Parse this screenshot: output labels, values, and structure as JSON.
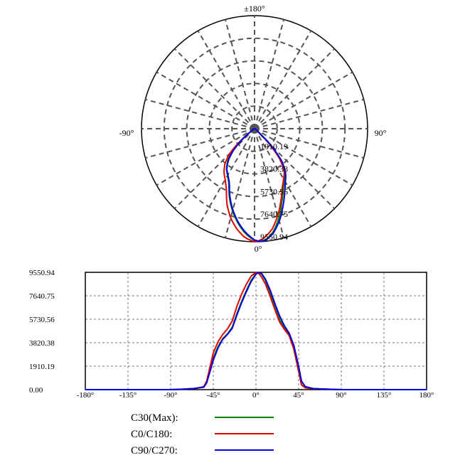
{
  "chart_data": [
    {
      "type": "polar",
      "angle_labels": {
        "top": "±180°",
        "left": "-90°",
        "right": "90°",
        "bottom": "0°"
      },
      "radial_labels": [
        "1910.19",
        "3820.38",
        "5730.56",
        "7640.75",
        "9550.94"
      ],
      "rmax": 9550.94,
      "series_ref": "shared"
    },
    {
      "type": "line",
      "xlim": [
        -180,
        180
      ],
      "ylim": [
        0,
        9550.94
      ],
      "x_tick_labels": [
        "-180°",
        "-135°",
        "-90°",
        "-45°",
        "0°",
        "45°",
        "90°",
        "135°",
        "180°"
      ],
      "x_ticks": [
        -180,
        -135,
        -90,
        -45,
        0,
        45,
        90,
        135,
        180
      ],
      "y_tick_labels": [
        "0.00",
        "1910.19",
        "3820.38",
        "5730.56",
        "7640.75",
        "9550.94"
      ],
      "y_ticks": [
        0,
        1910.19,
        3820.38,
        5730.56,
        7640.75,
        9550.94
      ],
      "grid": true,
      "legend_position": "bottom"
    }
  ],
  "series": [
    {
      "name": "C30(Max):",
      "color": "#008000",
      "points": [
        [
          -180,
          0
        ],
        [
          -90,
          0
        ],
        [
          -75,
          40
        ],
        [
          -65,
          90
        ],
        [
          -60,
          150
        ],
        [
          -55,
          200
        ],
        [
          -52,
          600
        ],
        [
          -48,
          1700
        ],
        [
          -45,
          2600
        ],
        [
          -40,
          3500
        ],
        [
          -35,
          4150
        ],
        [
          -30,
          4550
        ],
        [
          -25,
          5100
        ],
        [
          -20,
          6200
        ],
        [
          -15,
          7200
        ],
        [
          -10,
          8100
        ],
        [
          -5,
          8900
        ],
        [
          0,
          9450
        ],
        [
          3,
          9550
        ],
        [
          6,
          9400
        ],
        [
          10,
          8900
        ],
        [
          15,
          7900
        ],
        [
          20,
          6700
        ],
        [
          25,
          5700
        ],
        [
          30,
          5000
        ],
        [
          35,
          4500
        ],
        [
          40,
          3300
        ],
        [
          45,
          1500
        ],
        [
          48,
          400
        ],
        [
          52,
          150
        ],
        [
          60,
          80
        ],
        [
          70,
          50
        ],
        [
          90,
          0
        ],
        [
          180,
          0
        ]
      ]
    },
    {
      "name": "C0/C180:",
      "color": "#e00000",
      "points": [
        [
          -180,
          0
        ],
        [
          -90,
          0
        ],
        [
          -75,
          40
        ],
        [
          -65,
          90
        ],
        [
          -60,
          150
        ],
        [
          -55,
          250
        ],
        [
          -52,
          700
        ],
        [
          -48,
          2000
        ],
        [
          -45,
          3000
        ],
        [
          -40,
          3900
        ],
        [
          -35,
          4500
        ],
        [
          -30,
          4950
        ],
        [
          -25,
          5600
        ],
        [
          -20,
          6800
        ],
        [
          -15,
          7800
        ],
        [
          -10,
          8600
        ],
        [
          -5,
          9250
        ],
        [
          0,
          9550
        ],
        [
          3,
          9450
        ],
        [
          6,
          9150
        ],
        [
          10,
          8600
        ],
        [
          15,
          7600
        ],
        [
          20,
          6500
        ],
        [
          25,
          5500
        ],
        [
          30,
          4900
        ],
        [
          35,
          4400
        ],
        [
          40,
          3300
        ],
        [
          45,
          1500
        ],
        [
          48,
          400
        ],
        [
          52,
          150
        ],
        [
          60,
          80
        ],
        [
          70,
          50
        ],
        [
          90,
          0
        ],
        [
          180,
          0
        ]
      ]
    },
    {
      "name": "C90/C270:",
      "color": "#0000e0",
      "points": [
        [
          -180,
          0
        ],
        [
          -90,
          0
        ],
        [
          -75,
          40
        ],
        [
          -65,
          90
        ],
        [
          -60,
          150
        ],
        [
          -55,
          200
        ],
        [
          -52,
          550
        ],
        [
          -48,
          1600
        ],
        [
          -45,
          2400
        ],
        [
          -40,
          3400
        ],
        [
          -35,
          4100
        ],
        [
          -30,
          4500
        ],
        [
          -25,
          5000
        ],
        [
          -20,
          6100
        ],
        [
          -15,
          7100
        ],
        [
          -10,
          8000
        ],
        [
          -5,
          8800
        ],
        [
          0,
          9400
        ],
        [
          3,
          9550
        ],
        [
          6,
          9450
        ],
        [
          10,
          9000
        ],
        [
          15,
          8100
        ],
        [
          20,
          7000
        ],
        [
          25,
          6000
        ],
        [
          30,
          5200
        ],
        [
          35,
          4600
        ],
        [
          40,
          3600
        ],
        [
          45,
          1900
        ],
        [
          48,
          700
        ],
        [
          52,
          250
        ],
        [
          60,
          90
        ],
        [
          70,
          50
        ],
        [
          90,
          0
        ],
        [
          180,
          0
        ]
      ]
    }
  ],
  "legend": [
    {
      "label": "C30(Max):",
      "color": "#008000"
    },
    {
      "label": "C0/C180:",
      "color": "#e00000"
    },
    {
      "label": "C90/C270:",
      "color": "#0000e0"
    }
  ]
}
